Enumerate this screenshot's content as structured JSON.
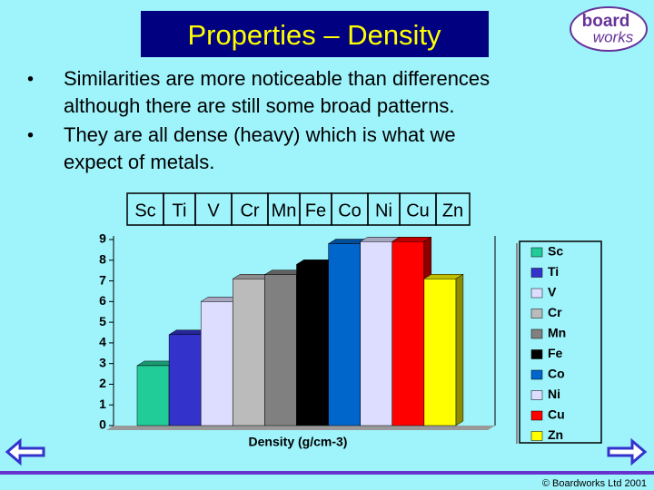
{
  "title": "Properties – Density",
  "logo": [
    "board",
    "works"
  ],
  "bullets": [
    [
      "Similarities are more noticeable than differences",
      "although there are still some broad patterns."
    ],
    [
      "They are all dense (heavy) which is what we",
      "expect of metals."
    ]
  ],
  "element_row": [
    "Sc",
    "Ti",
    "V",
    "Cr",
    "Mn",
    "Fe",
    "Co",
    "Ni",
    "Cu",
    "Zn"
  ],
  "chart_data": {
    "type": "bar3d",
    "x_label": "Density (g/cm-3)",
    "categories": [
      "Sc",
      "Ti",
      "V",
      "Cr",
      "Mn",
      "Fe",
      "Co",
      "Ni",
      "Cu",
      "Zn"
    ],
    "values": [
      2.9,
      4.4,
      6.0,
      7.1,
      7.3,
      7.8,
      8.8,
      8.9,
      8.9,
      7.1
    ],
    "colors": [
      "#22cc99",
      "#3333cc",
      "#ddddff",
      "#bbbbbb",
      "#808080",
      "#000000",
      "#0066cc",
      "#ddddff",
      "#ff0000",
      "#ffff00"
    ],
    "ylim": [
      0,
      9
    ],
    "yticks": [
      0,
      1,
      2,
      3,
      4,
      5,
      6,
      7,
      8,
      9
    ],
    "legend": "right"
  },
  "footer": "© Boardworks Ltd 2001"
}
